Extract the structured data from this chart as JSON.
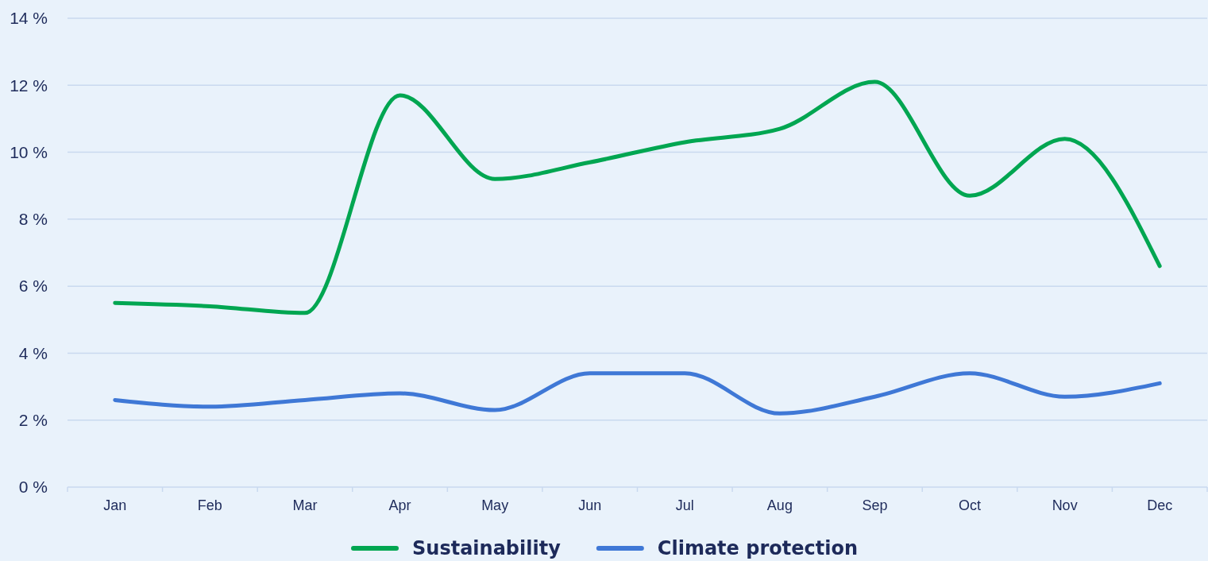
{
  "chart_data": {
    "type": "line",
    "categories": [
      "Jan",
      "Feb",
      "Mar",
      "Apr",
      "May",
      "Jun",
      "Jul",
      "Aug",
      "Sep",
      "Oct",
      "Nov",
      "Dec"
    ],
    "series": [
      {
        "name": "Sustainability",
        "color": "#00a651",
        "values": [
          5.5,
          5.4,
          5.2,
          11.7,
          9.2,
          9.7,
          10.3,
          10.7,
          12.1,
          8.7,
          10.4,
          6.6
        ]
      },
      {
        "name": "Climate protection",
        "color": "#3f78d6",
        "values": [
          2.6,
          2.4,
          2.6,
          2.8,
          2.3,
          3.4,
          3.4,
          2.2,
          2.7,
          3.4,
          2.7,
          3.1
        ]
      }
    ],
    "ylim": [
      0,
      14
    ],
    "yticks": [
      {
        "value": 0,
        "label": "0 %"
      },
      {
        "value": 2,
        "label": "2 %"
      },
      {
        "value": 4,
        "label": "4 %"
      },
      {
        "value": 6,
        "label": "6 %"
      },
      {
        "value": 8,
        "label": "8 %"
      },
      {
        "value": 10,
        "label": "10 %"
      },
      {
        "value": 12,
        "label": "12 %"
      },
      {
        "value": 14,
        "label": "14 %"
      }
    ],
    "grid": "y",
    "legend": "bottom",
    "marker": "none",
    "line_style": "solid"
  }
}
